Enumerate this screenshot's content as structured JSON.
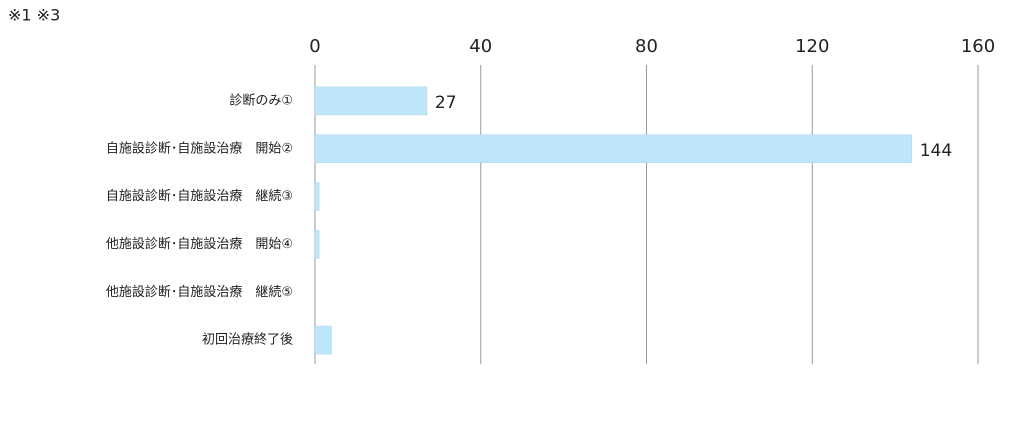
{
  "chart_data": {
    "type": "bar",
    "orientation": "horizontal",
    "annotation": "※1 ※3",
    "categories": [
      "診断のみ①",
      "自施設診断･自施設治療　開始②",
      "自施設診断･自施設治療　継続③",
      "他施設診断･自施設治療　開始④",
      "他施設診断･自施設治療　継続⑤",
      "初回治療終了後"
    ],
    "values": [
      27,
      144,
      1,
      1,
      0,
      4
    ],
    "value_labels": [
      "27",
      "144",
      null,
      null,
      null,
      null
    ],
    "color": "#bde6f8",
    "xlim": [
      0,
      160
    ],
    "xticks": [
      0,
      40,
      80,
      120,
      160
    ],
    "grid": true
  }
}
